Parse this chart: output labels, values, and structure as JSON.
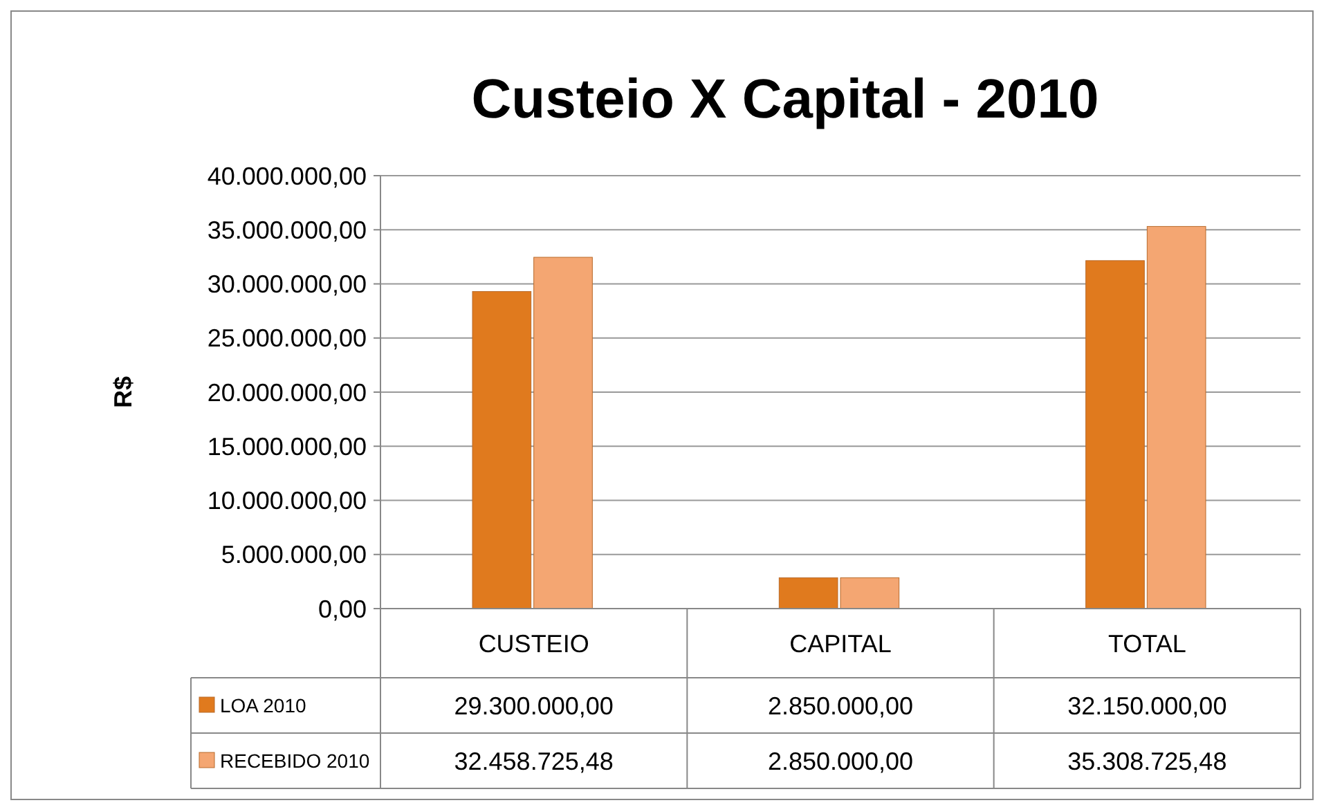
{
  "chart_data": {
    "type": "bar",
    "title": "Custeio X Capital - 2010",
    "ylabel": "R$",
    "categories": [
      "CUSTEIO",
      "CAPITAL",
      "TOTAL"
    ],
    "series": [
      {
        "name": "LOA 2010",
        "color": "#e07a1e",
        "values": [
          29300000,
          2850000,
          32150000
        ],
        "value_labels": [
          "29.300.000,00",
          "2.850.000,00",
          "32.150.000,00"
        ]
      },
      {
        "name": "RECEBIDO 2010",
        "color": "#f4a672",
        "values": [
          32458725.48,
          2850000,
          35308725.48
        ],
        "value_labels": [
          "32.458.725,48",
          "2.850.000,00",
          "35.308.725,48"
        ]
      }
    ],
    "ylim": [
      0,
      40000000
    ],
    "yticks": [
      {
        "value": 0,
        "label": "0,00"
      },
      {
        "value": 5000000,
        "label": "5.000.000,00"
      },
      {
        "value": 10000000,
        "label": "10.000.000,00"
      },
      {
        "value": 15000000,
        "label": "15.000.000,00"
      },
      {
        "value": 20000000,
        "label": "20.000.000,00"
      },
      {
        "value": 25000000,
        "label": "25.000.000,00"
      },
      {
        "value": 30000000,
        "label": "30.000.000,00"
      },
      {
        "value": 35000000,
        "label": "35.000.000,00"
      },
      {
        "value": 40000000,
        "label": "40.000.000,00"
      }
    ],
    "grid": "y",
    "legend": "bottom"
  }
}
